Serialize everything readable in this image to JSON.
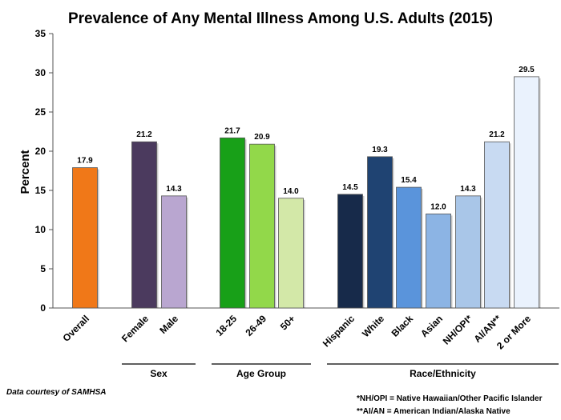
{
  "chart_data": {
    "type": "bar",
    "title": "Prevalence of Any Mental Illness Among U.S. Adults (2015)",
    "ylabel": "Percent",
    "xlabel": "",
    "ylim": [
      0,
      35
    ],
    "yticks": [
      0,
      5,
      10,
      15,
      20,
      25,
      30,
      35
    ],
    "categories": [
      "Overall",
      "Female",
      "Male",
      "18-25",
      "26-49",
      "50+",
      "Hispanic",
      "White",
      "Black",
      "Asian",
      "NH/OPI*",
      "AI/AN**",
      "2 or More"
    ],
    "values": [
      17.9,
      21.2,
      14.3,
      21.7,
      20.9,
      14.0,
      14.5,
      19.3,
      15.4,
      12.0,
      14.3,
      21.2,
      29.5
    ],
    "value_labels": [
      "17.9",
      "21.2",
      "14.3",
      "21.7",
      "20.9",
      "14.0",
      "14.5",
      "19.3",
      "15.4",
      "12.0",
      "14.3",
      "21.2",
      "29.5"
    ],
    "colors": [
      "#f07818",
      "#4b3a5e",
      "#b9a6d0",
      "#18a018",
      "#92d84a",
      "#d3e8a8",
      "#172a4a",
      "#1f4372",
      "#5a94db",
      "#8cb4e4",
      "#a9c6e8",
      "#c8daf2",
      "#eaf2fd"
    ],
    "groups": [
      {
        "label": "Sex",
        "members": [
          "Female",
          "Male"
        ]
      },
      {
        "label": "Age Group",
        "members": [
          "18-25",
          "26-49",
          "50+"
        ]
      },
      {
        "label": "Race/Ethnicity",
        "members": [
          "Hispanic",
          "White",
          "Black",
          "Asian",
          "NH/OPI*",
          "AI/AN**",
          "2 or More"
        ]
      }
    ],
    "grid": false
  },
  "annotations": {
    "source": "Data courtesy of SAMHSA",
    "footnote1": "*NH/OPI = Native Hawaiian/Other Pacific Islander",
    "footnote2": "**AI/AN = American Indian/Alaska Native"
  }
}
